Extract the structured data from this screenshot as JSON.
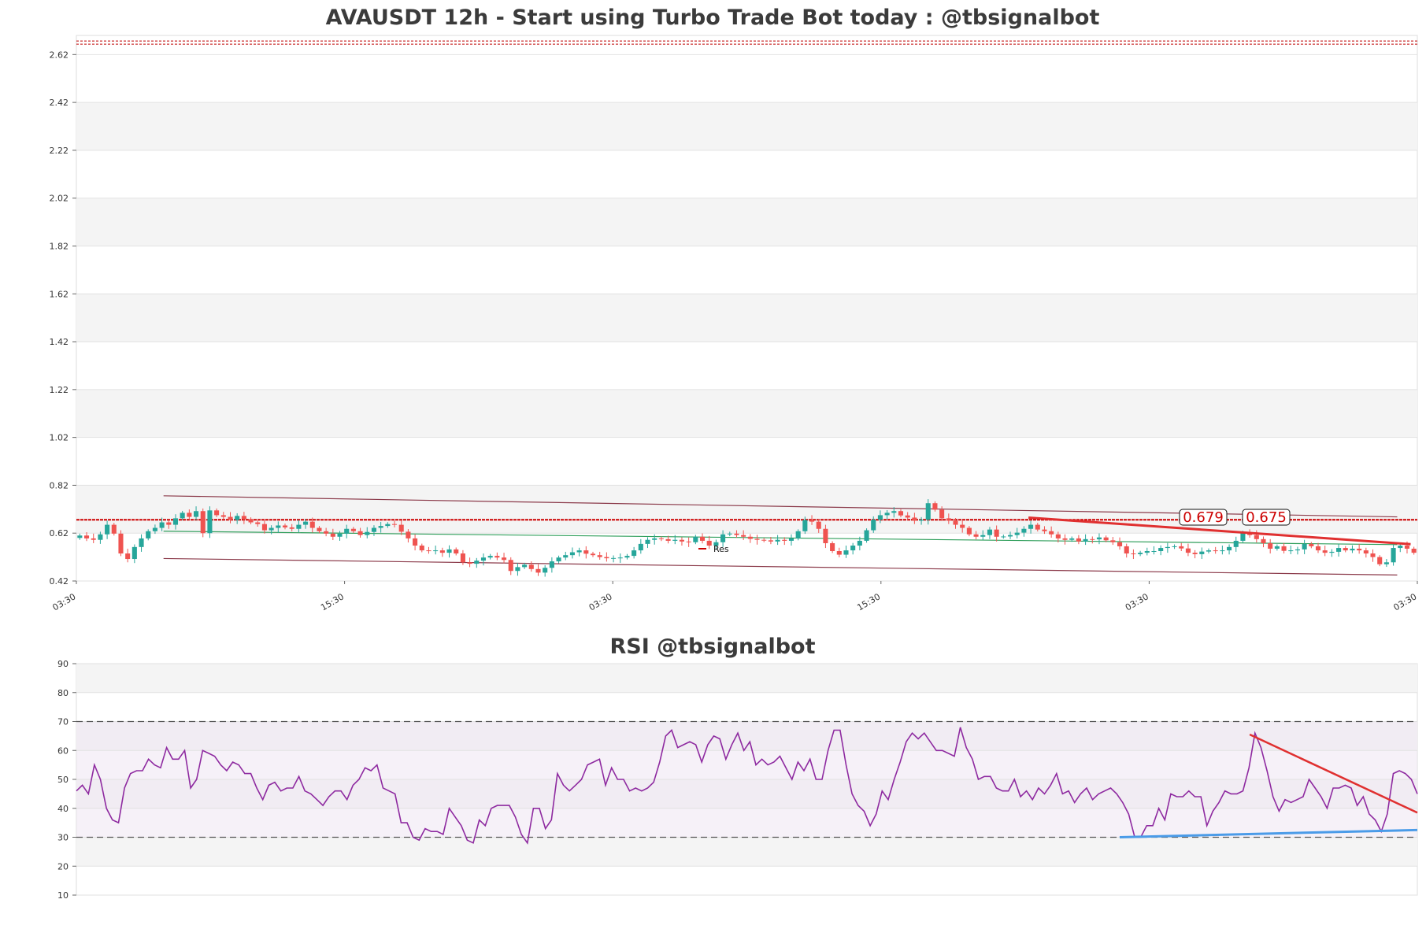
{
  "chart_data": [
    {
      "type": "candlestick",
      "title": "AVAUSDT 12h - Start using Turbo Trade Bot today : @tbsignalbot",
      "ylim": [
        0.42,
        2.7
      ],
      "y_ticks": [
        "0.42",
        "0.62",
        "0.82",
        "1.02",
        "1.22",
        "1.42",
        "1.62",
        "1.82",
        "2.02",
        "2.22",
        "2.42",
        "2.62"
      ],
      "x_tick_labels": [
        "03:30",
        "15:30",
        "03:30",
        "15:30",
        "03:30",
        "03:30"
      ],
      "legend": [
        {
          "label": "Res",
          "color": "#cc0000"
        }
      ],
      "resistance_level": 0.676,
      "top_dashed_level": 2.67,
      "annotations": [
        "0.679",
        "0.675"
      ],
      "channel_upper": [
        [
          0.065,
          0.776
        ],
        [
          0.985,
          0.688
        ]
      ],
      "channel_mid": [
        [
          0.065,
          0.628
        ],
        [
          0.985,
          0.572
        ]
      ],
      "channel_lower": [
        [
          0.065,
          0.514
        ],
        [
          0.985,
          0.445
        ]
      ],
      "trendline_red": [
        [
          0.71,
          0.685
        ],
        [
          0.995,
          0.574
        ]
      ],
      "close": [
        0.61,
        0.598,
        0.592,
        0.615,
        0.655,
        0.618,
        0.535,
        0.512,
        0.562,
        0.598,
        0.628,
        0.642,
        0.665,
        0.655,
        0.682,
        0.705,
        0.688,
        0.712,
        0.62,
        0.715,
        0.695,
        0.688,
        0.675,
        0.692,
        0.678,
        0.665,
        0.658,
        0.632,
        0.642,
        0.652,
        0.644,
        0.638,
        0.655,
        0.668,
        0.642,
        0.628,
        0.618,
        0.605,
        0.618,
        0.638,
        0.628,
        0.612,
        0.625,
        0.642,
        0.65,
        0.658,
        0.655,
        0.626,
        0.598,
        0.568,
        0.548,
        0.545,
        0.548,
        0.538,
        0.552,
        0.535,
        0.498,
        0.492,
        0.505,
        0.518,
        0.525,
        0.518,
        0.508,
        0.462,
        0.478,
        0.488,
        0.47,
        0.455,
        0.475,
        0.502,
        0.518,
        0.528,
        0.54,
        0.548,
        0.534,
        0.528,
        0.52,
        0.515,
        0.516,
        0.518,
        0.525,
        0.548,
        0.575,
        0.592,
        0.598,
        0.595,
        0.588,
        0.592,
        0.585,
        0.582,
        0.605,
        0.588,
        0.568,
        0.582,
        0.615,
        0.618,
        0.612,
        0.605,
        0.596,
        0.592,
        0.59,
        0.585,
        0.592,
        0.588,
        0.598,
        0.628,
        0.675,
        0.668,
        0.638,
        0.578,
        0.545,
        0.53,
        0.548,
        0.568,
        0.588,
        0.632,
        0.676,
        0.695,
        0.705,
        0.712,
        0.694,
        0.685,
        0.672,
        0.676,
        0.745,
        0.718,
        0.682,
        0.672,
        0.655,
        0.642,
        0.615,
        0.605,
        0.612,
        0.635,
        0.605,
        0.606,
        0.612,
        0.622,
        0.638,
        0.655,
        0.635,
        0.628,
        0.615,
        0.598,
        0.592,
        0.598,
        0.585,
        0.595,
        0.594,
        0.602,
        0.59,
        0.582,
        0.565,
        0.535,
        0.532,
        0.538,
        0.545,
        0.545,
        0.558,
        0.562,
        0.565,
        0.556,
        0.538,
        0.532,
        0.543,
        0.548,
        0.545,
        0.548,
        0.562,
        0.588,
        0.622,
        0.612,
        0.595,
        0.578,
        0.555,
        0.565,
        0.546,
        0.548,
        0.552,
        0.575,
        0.565,
        0.548,
        0.538,
        0.542,
        0.558,
        0.548,
        0.555,
        0.548,
        0.535,
        0.52,
        0.49,
        0.498,
        0.558,
        0.568,
        0.555,
        0.538
      ]
    },
    {
      "type": "line",
      "title": "RSI @tbsignalbot",
      "ylim": [
        10,
        90
      ],
      "y_ticks": [
        "10",
        "20",
        "30",
        "40",
        "50",
        "60",
        "70",
        "80",
        "90"
      ],
      "overbought": 70,
      "oversold": 30,
      "rsi_values": [
        46,
        48,
        45,
        55,
        50,
        40,
        36,
        35,
        47,
        52,
        53,
        53,
        57,
        55,
        54,
        61,
        57,
        57,
        60,
        47,
        50,
        60,
        59,
        58,
        55,
        53,
        56,
        55,
        52,
        52,
        47,
        43,
        48,
        49,
        46,
        47,
        47,
        51,
        46,
        45,
        43,
        41,
        44,
        46,
        46,
        43,
        48,
        50,
        54,
        53,
        55,
        47,
        46,
        45,
        35,
        35,
        30,
        29,
        33,
        32,
        32,
        31,
        40,
        37,
        34,
        29,
        28,
        36,
        34,
        40,
        41,
        41,
        41,
        37,
        31,
        28,
        40,
        40,
        33,
        36,
        52,
        48,
        46,
        48,
        50,
        55,
        56,
        57,
        48,
        54,
        50,
        50,
        46,
        47,
        46,
        47,
        49,
        56,
        65,
        67,
        61,
        62,
        63,
        62,
        56,
        62,
        65,
        64,
        57,
        62,
        66,
        60,
        63,
        55,
        57,
        55,
        56,
        58,
        54,
        50,
        56,
        53,
        57,
        50,
        50,
        60,
        67,
        67,
        55,
        45,
        41,
        39,
        34,
        38,
        46,
        43,
        50,
        56,
        63,
        66,
        64,
        66,
        63,
        60,
        60,
        59,
        58,
        68,
        61,
        57,
        50,
        51,
        51,
        47,
        46,
        46,
        50,
        44,
        46,
        43,
        47,
        45,
        48,
        52,
        45,
        46,
        42,
        45,
        47,
        43,
        45,
        46,
        47,
        45,
        42,
        38,
        30,
        30,
        34,
        34,
        40,
        36,
        45,
        44,
        44,
        46,
        44,
        44,
        34,
        39,
        42,
        46,
        45,
        45,
        46,
        54,
        66,
        61,
        53,
        44,
        39,
        43,
        42,
        43,
        44,
        50,
        47,
        44,
        40,
        47,
        47,
        48,
        47,
        41,
        44,
        38,
        36,
        32,
        38,
        52,
        53,
        52,
        50,
        45
      ],
      "trendline_red": [
        [
          0.875,
          65.5
        ],
        [
          1.0,
          38.5
        ]
      ],
      "trendline_blue": [
        [
          0.778,
          30.0
        ],
        [
          1.0,
          32.5
        ]
      ]
    }
  ]
}
